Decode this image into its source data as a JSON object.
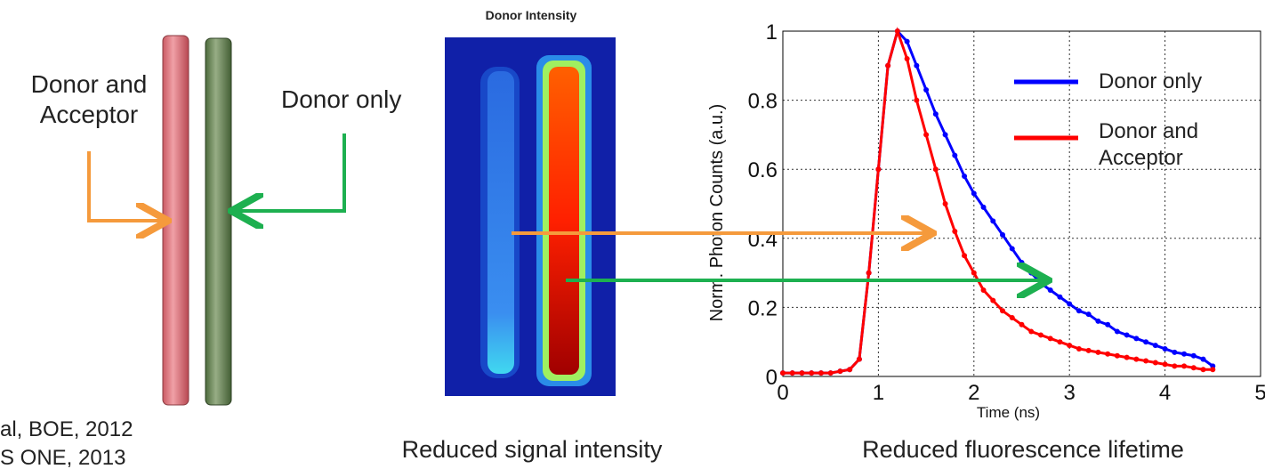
{
  "left_label": "Donor and Acceptor",
  "right_label": "Donor only",
  "image_title": "Donor Intensity",
  "caption_image": "Reduced signal intensity",
  "caption_chart": "Reduced fluorescence lifetime",
  "citations": [
    "al, BOE, 2012",
    "S ONE, 2013"
  ],
  "chart_data": {
    "type": "line",
    "x_label": "Time (ns)",
    "y_label": "Norm. Photon Counts (a.u.)",
    "x": [
      0,
      0.1,
      0.2,
      0.3,
      0.4,
      0.5,
      0.6,
      0.7,
      0.8,
      0.9,
      1.0,
      1.1,
      1.2,
      1.3,
      1.4,
      1.5,
      1.6,
      1.7,
      1.8,
      1.9,
      2.0,
      2.1,
      2.2,
      2.3,
      2.4,
      2.5,
      2.6,
      2.7,
      2.8,
      2.9,
      3.0,
      3.1,
      3.2,
      3.3,
      3.4,
      3.5,
      3.6,
      3.7,
      3.8,
      3.9,
      4.0,
      4.1,
      4.2,
      4.3,
      4.4,
      4.5
    ],
    "series": [
      {
        "name": "Donor only",
        "color": "#0000ff",
        "values": [
          0.01,
          0.01,
          0.01,
          0.01,
          0.01,
          0.01,
          0.015,
          0.02,
          0.05,
          0.3,
          0.6,
          0.9,
          1.0,
          0.97,
          0.9,
          0.83,
          0.76,
          0.7,
          0.64,
          0.58,
          0.53,
          0.49,
          0.45,
          0.41,
          0.37,
          0.33,
          0.3,
          0.27,
          0.25,
          0.23,
          0.21,
          0.19,
          0.18,
          0.16,
          0.15,
          0.13,
          0.12,
          0.11,
          0.1,
          0.09,
          0.08,
          0.07,
          0.065,
          0.06,
          0.05,
          0.03
        ]
      },
      {
        "name": "Donor and Acceptor",
        "color": "#ff0000",
        "values": [
          0.01,
          0.01,
          0.01,
          0.01,
          0.01,
          0.01,
          0.015,
          0.02,
          0.05,
          0.3,
          0.6,
          0.9,
          1.0,
          0.92,
          0.8,
          0.7,
          0.6,
          0.5,
          0.42,
          0.35,
          0.3,
          0.25,
          0.22,
          0.19,
          0.17,
          0.15,
          0.13,
          0.12,
          0.11,
          0.1,
          0.09,
          0.08,
          0.075,
          0.07,
          0.065,
          0.06,
          0.055,
          0.05,
          0.045,
          0.04,
          0.035,
          0.03,
          0.03,
          0.025,
          0.02,
          0.02
        ]
      }
    ],
    "xlim": [
      0,
      5
    ],
    "xticks": [
      0,
      1,
      2,
      3,
      4,
      5
    ],
    "ylim": [
      0,
      1
    ],
    "yticks": [
      0,
      0.2,
      0.4,
      0.6,
      0.8,
      1
    ],
    "grid": true
  }
}
